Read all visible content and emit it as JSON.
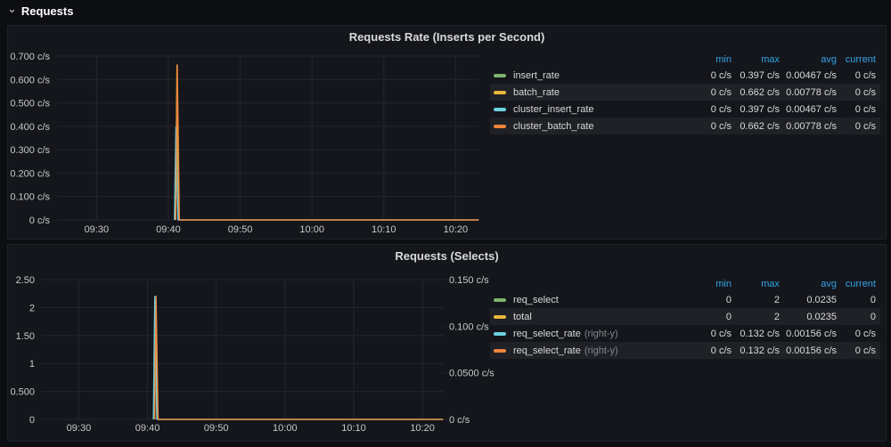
{
  "section_header": {
    "label": "Requests",
    "collapse_icon": "⌄"
  },
  "colors": {
    "green": "#7EB26D",
    "yellow": "#EAB839",
    "cyan": "#6ED0E0",
    "orange": "#EF843C",
    "header_blue": "#33a2e5",
    "axis_text": "#c7c8c9",
    "grid": "#24272d",
    "panel_bg": "#14161c"
  },
  "chart_data": [
    {
      "type": "line",
      "title": "Requests Rate (Inserts per Second)",
      "x_range": [
        24.5,
        83.3
      ],
      "x_ticks": [
        {
          "label": "09:30",
          "value": 30
        },
        {
          "label": "09:40",
          "value": 40
        },
        {
          "label": "09:50",
          "value": 50
        },
        {
          "label": "10:00",
          "value": 60
        },
        {
          "label": "10:10",
          "value": 70
        },
        {
          "label": "10:20",
          "value": 80
        }
      ],
      "left_axis": {
        "range": [
          0,
          0.7
        ],
        "unit": "c/s",
        "ticks": [
          {
            "label": "0.700 c/s",
            "value": 0.7
          },
          {
            "label": "0.600 c/s",
            "value": 0.6
          },
          {
            "label": "0.500 c/s",
            "value": 0.5
          },
          {
            "label": "0.400 c/s",
            "value": 0.4
          },
          {
            "label": "0.300 c/s",
            "value": 0.3
          },
          {
            "label": "0.200 c/s",
            "value": 0.2
          },
          {
            "label": "0.100 c/s",
            "value": 0.1
          },
          {
            "label": "0 c/s",
            "value": 0
          }
        ]
      },
      "series": [
        {
          "name": "insert_rate",
          "color": "#7EB26D",
          "axis": "left",
          "points": [
            [
              41.0,
              0
            ],
            [
              41.2,
              0.397
            ],
            [
              41.5,
              0
            ],
            [
              83.2,
              0
            ]
          ]
        },
        {
          "name": "batch_rate",
          "color": "#EAB839",
          "axis": "left",
          "points": [
            [
              41.0,
              0
            ],
            [
              41.2,
              0.662
            ],
            [
              41.5,
              0
            ],
            [
              83.2,
              0
            ]
          ]
        },
        {
          "name": "cluster_insert_rate",
          "color": "#6ED0E0",
          "axis": "left",
          "points": [
            [
              40.85,
              0
            ],
            [
              41.05,
              0.397
            ],
            [
              41.35,
              0
            ],
            [
              83.2,
              0
            ]
          ]
        },
        {
          "name": "cluster_batch_rate",
          "color": "#EF843C",
          "axis": "left",
          "points": [
            [
              41.05,
              0
            ],
            [
              41.25,
              0.662
            ],
            [
              41.55,
              0
            ],
            [
              83.2,
              0
            ]
          ]
        }
      ]
    },
    {
      "type": "line",
      "title": "Requests (Selects)",
      "x_range": [
        24.5,
        83.1
      ],
      "x_ticks": [
        {
          "label": "09:30",
          "value": 30
        },
        {
          "label": "09:40",
          "value": 40
        },
        {
          "label": "09:50",
          "value": 50
        },
        {
          "label": "10:00",
          "value": 60
        },
        {
          "label": "10:10",
          "value": 70
        },
        {
          "label": "10:20",
          "value": 80
        }
      ],
      "left_axis": {
        "range": [
          0,
          2.5
        ],
        "ticks": [
          {
            "label": "2.50",
            "value": 2.5
          },
          {
            "label": "2",
            "value": 2
          },
          {
            "label": "1.50",
            "value": 1.5
          },
          {
            "label": "1",
            "value": 1
          },
          {
            "label": "0.500",
            "value": 0.5
          },
          {
            "label": "0",
            "value": 0
          }
        ]
      },
      "right_axis": {
        "range": [
          0,
          0.15
        ],
        "unit": "c/s",
        "ticks": [
          {
            "label": "0.150 c/s",
            "value": 0.15
          },
          {
            "label": "0.100 c/s",
            "value": 0.1
          },
          {
            "label": "0.0500 c/s",
            "value": 0.05
          },
          {
            "label": "0 c/s",
            "value": 0
          }
        ]
      },
      "series": [
        {
          "name": "req_select",
          "color": "#7EB26D",
          "axis": "left",
          "points": [
            [
              41.0,
              0
            ],
            [
              41.2,
              2
            ],
            [
              41.5,
              0
            ],
            [
              83.0,
              0
            ]
          ]
        },
        {
          "name": "total",
          "color": "#EAB839",
          "axis": "left",
          "points": [
            [
              41.0,
              0
            ],
            [
              41.2,
              2
            ],
            [
              41.5,
              0
            ],
            [
              83.0,
              0
            ]
          ]
        },
        {
          "name": "req_select_rate",
          "color": "#6ED0E0",
          "axis": "right",
          "points": [
            [
              40.85,
              0
            ],
            [
              41.05,
              0.132
            ],
            [
              41.35,
              0
            ],
            [
              83.0,
              0
            ]
          ]
        },
        {
          "name": "req_select_rate",
          "color": "#EF843C",
          "axis": "right",
          "points": [
            [
              41.05,
              0
            ],
            [
              41.25,
              0.132
            ],
            [
              41.55,
              0
            ],
            [
              83.0,
              0
            ]
          ]
        }
      ]
    }
  ],
  "panels": [
    {
      "legend": {
        "headers": [
          "min",
          "max",
          "avg",
          "current"
        ],
        "rows": [
          {
            "label": "insert_rate",
            "note": "",
            "color": "#7EB26D",
            "min": "0 c/s",
            "max": "0.397 c/s",
            "avg": "0.00467 c/s",
            "current": "0 c/s"
          },
          {
            "label": "batch_rate",
            "note": "",
            "color": "#EAB839",
            "min": "0 c/s",
            "max": "0.662 c/s",
            "avg": "0.00778 c/s",
            "current": "0 c/s"
          },
          {
            "label": "cluster_insert_rate",
            "note": "",
            "color": "#6ED0E0",
            "min": "0 c/s",
            "max": "0.397 c/s",
            "avg": "0.00467 c/s",
            "current": "0 c/s"
          },
          {
            "label": "cluster_batch_rate",
            "note": "",
            "color": "#EF843C",
            "min": "0 c/s",
            "max": "0.662 c/s",
            "avg": "0.00778 c/s",
            "current": "0 c/s"
          }
        ]
      }
    },
    {
      "legend": {
        "headers": [
          "min",
          "max",
          "avg",
          "current"
        ],
        "rows": [
          {
            "label": "req_select",
            "note": "",
            "color": "#7EB26D",
            "min": "0",
            "max": "2",
            "avg": "0.0235",
            "current": "0"
          },
          {
            "label": "total",
            "note": "",
            "color": "#EAB839",
            "min": "0",
            "max": "2",
            "avg": "0.0235",
            "current": "0"
          },
          {
            "label": "req_select_rate",
            "note": "(right-y)",
            "color": "#6ED0E0",
            "min": "0 c/s",
            "max": "0.132 c/s",
            "avg": "0.00156 c/s",
            "current": "0 c/s"
          },
          {
            "label": "req_select_rate",
            "note": "(right-y)",
            "color": "#EF843C",
            "min": "0 c/s",
            "max": "0.132 c/s",
            "avg": "0.00156 c/s",
            "current": "0 c/s"
          }
        ]
      }
    }
  ]
}
